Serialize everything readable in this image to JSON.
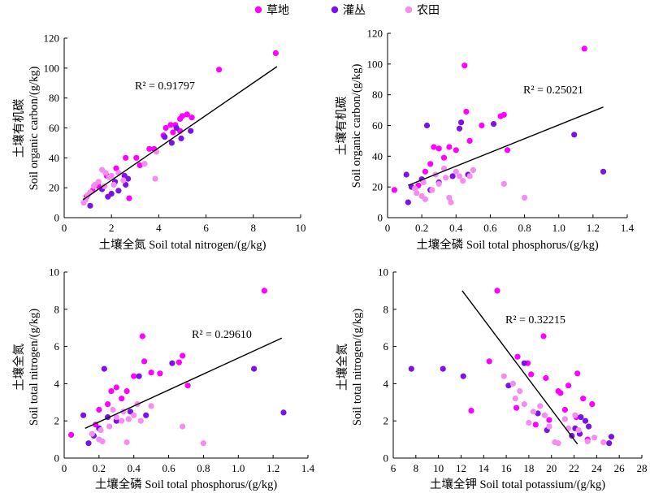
{
  "legend": [
    {
      "label": "草地",
      "color": "#ff00ff"
    },
    {
      "label": "灌丛",
      "color": "#7a14e6"
    },
    {
      "label": "农田",
      "color": "#f58cf0"
    }
  ],
  "chart_data": [
    {
      "type": "scatter",
      "xlabel": "土壤全氮 Soil total nitrogen/(g/kg)",
      "ylabel_cn": "土壤有机碳",
      "ylabel_en": "Soil organic carbon/(g/kg)",
      "xlim": [
        0,
        10
      ],
      "ylim": [
        0,
        120
      ],
      "xticks": [
        0,
        2,
        4,
        6,
        8,
        10
      ],
      "yticks": [
        0,
        20,
        40,
        60,
        80,
        100,
        120
      ],
      "grid": false,
      "r2_label": "R² = 0.91797",
      "fit": {
        "x": [
          0.8,
          9.0
        ],
        "y": [
          12,
          101
        ]
      },
      "series": [
        {
          "name": "草地",
          "color": "#ff00ff",
          "points": [
            [
              8.95,
              110
            ],
            [
              6.55,
              99
            ],
            [
              5.2,
              69
            ],
            [
              5.0,
              68
            ],
            [
              5.4,
              67
            ],
            [
              4.9,
              66
            ],
            [
              4.7,
              62
            ],
            [
              4.5,
              62
            ],
            [
              4.3,
              60
            ],
            [
              4.9,
              58
            ],
            [
              4.6,
              57
            ],
            [
              3.6,
              46
            ],
            [
              3.8,
              46
            ],
            [
              3.05,
              40
            ],
            [
              2.6,
              40
            ],
            [
              2.2,
              33
            ],
            [
              1.8,
              28
            ],
            [
              2.75,
              13
            ],
            [
              1.45,
              21
            ],
            [
              1.2,
              18
            ],
            [
              0.95,
              14
            ],
            [
              3.2,
              35
            ],
            [
              4.2,
              55
            ]
          ]
        },
        {
          "name": "灌丛",
          "color": "#7a14e6",
          "points": [
            [
              5.35,
              58
            ],
            [
              4.95,
              53
            ],
            [
              4.55,
              50
            ],
            [
              4.25,
              54
            ],
            [
              4.75,
              60
            ],
            [
              2.55,
              28
            ],
            [
              2.3,
              18
            ],
            [
              2.0,
              16
            ],
            [
              1.85,
              14
            ],
            [
              1.1,
              8
            ],
            [
              2.7,
              26
            ],
            [
              2.15,
              24
            ],
            [
              1.6,
              19
            ],
            [
              2.6,
              22
            ]
          ]
        },
        {
          "name": "农田",
          "color": "#f58cf0",
          "points": [
            [
              3.85,
              26
            ],
            [
              1.25,
              21
            ],
            [
              1.6,
              32
            ],
            [
              1.75,
              30
            ],
            [
              1.45,
              24
            ],
            [
              1.1,
              17
            ],
            [
              0.9,
              12
            ],
            [
              0.82,
              10
            ],
            [
              1.0,
              15
            ],
            [
              2.0,
              28
            ],
            [
              2.3,
              30
            ],
            [
              2.5,
              25
            ],
            [
              1.3,
              22
            ],
            [
              1.9,
              27
            ],
            [
              3.4,
              36
            ],
            [
              3.9,
              44
            ],
            [
              1.7,
              21
            ],
            [
              2.1,
              22
            ]
          ]
        }
      ]
    },
    {
      "type": "scatter",
      "xlabel": "土壤全磷 Soil total phosphorus/(g/kg)",
      "ylabel_cn": "土壤有机碳",
      "ylabel_en": "Soil organic carbon/(g/kg)",
      "xlim": [
        0,
        1.4
      ],
      "ylim": [
        0,
        120
      ],
      "xticks": [
        0,
        0.2,
        0.4,
        0.6,
        0.8,
        1.0,
        1.2,
        1.4
      ],
      "xtick_labels": [
        "0",
        "0.2",
        "0.4",
        "0.6",
        "0.8",
        "1.0",
        "1.2",
        "1.4"
      ],
      "yticks": [
        0,
        20,
        40,
        60,
        80,
        100,
        120
      ],
      "grid": false,
      "r2_label": "R² = 0.25021",
      "fit": {
        "x": [
          0.12,
          1.26
        ],
        "y": [
          21,
          72
        ]
      },
      "series": [
        {
          "name": "草地",
          "color": "#ff00ff",
          "points": [
            [
              1.15,
              110
            ],
            [
              0.45,
              99
            ],
            [
              0.46,
              69
            ],
            [
              0.68,
              67
            ],
            [
              0.66,
              66
            ],
            [
              0.55,
              60
            ],
            [
              0.4,
              44
            ],
            [
              0.36,
              46
            ],
            [
              0.3,
              45
            ],
            [
              0.27,
              46
            ],
            [
              0.7,
              44
            ],
            [
              0.33,
              39
            ],
            [
              0.25,
              35
            ],
            [
              0.22,
              30
            ],
            [
              0.48,
              50
            ],
            [
              0.04,
              18
            ],
            [
              0.18,
              21
            ]
          ]
        },
        {
          "name": "灌丛",
          "color": "#7a14e6",
          "points": [
            [
              0.23,
              60
            ],
            [
              0.43,
              62
            ],
            [
              0.42,
              58
            ],
            [
              0.62,
              61
            ],
            [
              1.09,
              54
            ],
            [
              1.26,
              30
            ],
            [
              0.11,
              28
            ],
            [
              0.14,
              20
            ],
            [
              0.2,
              25
            ],
            [
              0.25,
              18
            ],
            [
              0.12,
              10
            ],
            [
              0.3,
              23
            ],
            [
              0.38,
              27
            ],
            [
              0.47,
              28
            ]
          ]
        },
        {
          "name": "农田",
          "color": "#f58cf0",
          "points": [
            [
              0.8,
              13
            ],
            [
              0.68,
              22
            ],
            [
              0.16,
              19
            ],
            [
              0.17,
              16
            ],
            [
              0.2,
              14
            ],
            [
              0.22,
              12
            ],
            [
              0.26,
              18
            ],
            [
              0.3,
              22
            ],
            [
              0.34,
              26
            ],
            [
              0.36,
              13
            ],
            [
              0.37,
              10
            ],
            [
              0.42,
              27
            ],
            [
              0.44,
              24
            ],
            [
              0.48,
              27
            ],
            [
              0.5,
              31
            ],
            [
              0.28,
              28
            ],
            [
              0.33,
              32
            ],
            [
              0.4,
              30
            ],
            [
              0.21,
              23
            ]
          ]
        }
      ]
    },
    {
      "type": "scatter",
      "xlabel": "土壤全磷 Soil total phosphorus/(g/kg)",
      "ylabel_cn": "土壤全氮",
      "ylabel_en": "Soil total nitrogen/(g/kg)",
      "xlim": [
        0,
        1.4
      ],
      "ylim": [
        0,
        10
      ],
      "xticks": [
        0,
        0.2,
        0.4,
        0.6,
        0.8,
        1.0,
        1.2,
        1.4
      ],
      "xtick_labels": [
        "0",
        "0.2",
        "0.4",
        "0.6",
        "0.8",
        "1.0",
        "1.2",
        "1.4"
      ],
      "yticks": [
        0,
        2,
        4,
        6,
        8,
        10
      ],
      "grid": false,
      "r2_label": "R² = 0.29610",
      "fit": {
        "x": [
          0.12,
          1.25
        ],
        "y": [
          1.6,
          6.45
        ]
      },
      "series": [
        {
          "name": "草地",
          "color": "#ff00ff",
          "points": [
            [
              1.15,
              9.0
            ],
            [
              0.45,
              6.55
            ],
            [
              0.68,
              5.5
            ],
            [
              0.66,
              5.15
            ],
            [
              0.46,
              5.2
            ],
            [
              0.55,
              4.55
            ],
            [
              0.5,
              4.6
            ],
            [
              0.4,
              4.4
            ],
            [
              0.36,
              3.6
            ],
            [
              0.3,
              3.8
            ],
            [
              0.27,
              3.6
            ],
            [
              0.71,
              3.9
            ],
            [
              0.33,
              3.2
            ],
            [
              0.25,
              2.9
            ],
            [
              0.2,
              2.6
            ],
            [
              0.04,
              1.25
            ],
            [
              0.18,
              1.8
            ]
          ]
        },
        {
          "name": "灌丛",
          "color": "#7a14e6",
          "points": [
            [
              0.23,
              4.8
            ],
            [
              0.43,
              4.4
            ],
            [
              0.62,
              5.1
            ],
            [
              1.09,
              4.8
            ],
            [
              1.26,
              2.45
            ],
            [
              0.11,
              2.3
            ],
            [
              0.14,
              0.8
            ],
            [
              0.2,
              1.6
            ],
            [
              0.25,
              2.2
            ],
            [
              0.3,
              2.0
            ],
            [
              0.38,
              2.5
            ],
            [
              0.47,
              2.3
            ],
            [
              0.17,
              1.2
            ]
          ]
        },
        {
          "name": "农田",
          "color": "#f58cf0",
          "points": [
            [
              0.8,
              0.8
            ],
            [
              0.68,
              1.7
            ],
            [
              0.16,
              1.3
            ],
            [
              0.2,
              1.0
            ],
            [
              0.22,
              0.9
            ],
            [
              0.26,
              1.7
            ],
            [
              0.3,
              2.2
            ],
            [
              0.34,
              2.5
            ],
            [
              0.36,
              0.85
            ],
            [
              0.42,
              2.9
            ],
            [
              0.44,
              2.0
            ],
            [
              0.5,
              2.8
            ],
            [
              0.28,
              2.6
            ],
            [
              0.33,
              2.0
            ],
            [
              0.4,
              2.3
            ],
            [
              0.21,
              1.5
            ],
            [
              0.37,
              2.1
            ]
          ]
        }
      ]
    },
    {
      "type": "scatter",
      "xlabel": "土壤全钾 Soil total potassium/(g/kg)",
      "ylabel_cn": "土壤全氮",
      "ylabel_en": "Soil total nitrogen/(g/kg)",
      "xlim": [
        6,
        28
      ],
      "ylim": [
        0,
        10
      ],
      "xticks": [
        6,
        8,
        10,
        12,
        14,
        16,
        18,
        20,
        22,
        24,
        26,
        28
      ],
      "yticks": [
        0,
        2,
        4,
        6,
        8,
        10
      ],
      "grid": false,
      "r2_label": "R² = 0.32215",
      "fit": {
        "x": [
          12.1,
          22.3
        ],
        "y": [
          9.0,
          0.75
        ]
      },
      "series": [
        {
          "name": "草地",
          "color": "#ff00ff",
          "points": [
            [
              15.2,
              9.0
            ],
            [
              19.3,
              6.55
            ],
            [
              14.5,
              5.2
            ],
            [
              17.0,
              5.45
            ],
            [
              17.9,
              5.1
            ],
            [
              18.2,
              4.5
            ],
            [
              19.5,
              4.3
            ],
            [
              20.6,
              3.6
            ],
            [
              20.8,
              3.5
            ],
            [
              21.5,
              3.9
            ],
            [
              22.3,
              4.55
            ],
            [
              22.8,
              3.2
            ],
            [
              23.6,
              2.9
            ],
            [
              21.2,
              2.6
            ],
            [
              12.9,
              2.55
            ],
            [
              16.9,
              2.7
            ],
            [
              18.6,
              1.8
            ],
            [
              19.8,
              2.05
            ],
            [
              22.2,
              2.2
            ],
            [
              23.2,
              1.0
            ]
          ]
        },
        {
          "name": "灌丛",
          "color": "#7a14e6",
          "points": [
            [
              7.6,
              4.8
            ],
            [
              10.4,
              4.8
            ],
            [
              12.2,
              4.4
            ],
            [
              17.6,
              5.1
            ],
            [
              16.2,
              3.9
            ],
            [
              18.8,
              2.4
            ],
            [
              22.1,
              1.6
            ],
            [
              22.6,
              2.2
            ],
            [
              23.0,
              2.0
            ],
            [
              23.3,
              1.7
            ],
            [
              25.3,
              1.15
            ],
            [
              25.1,
              0.8
            ],
            [
              21.8,
              1.2
            ],
            [
              19.6,
              1.5
            ],
            [
              22.5,
              1.3
            ]
          ]
        },
        {
          "name": "农田",
          "color": "#f58cf0",
          "points": [
            [
              15.8,
              4.4
            ],
            [
              16.6,
              4.0
            ],
            [
              17.2,
              3.6
            ],
            [
              17.6,
              2.9
            ],
            [
              18.4,
              2.5
            ],
            [
              19.0,
              2.8
            ],
            [
              19.4,
              2.3
            ],
            [
              19.8,
              1.7
            ],
            [
              20.3,
              0.85
            ],
            [
              20.6,
              0.8
            ],
            [
              21.2,
              2.1
            ],
            [
              21.5,
              1.6
            ],
            [
              22.1,
              2.3
            ],
            [
              22.4,
              1.5
            ],
            [
              23.2,
              0.9
            ],
            [
              23.8,
              1.1
            ],
            [
              24.6,
              0.85
            ],
            [
              18.0,
              1.9
            ],
            [
              16.8,
              3.2
            ]
          ]
        }
      ]
    }
  ]
}
